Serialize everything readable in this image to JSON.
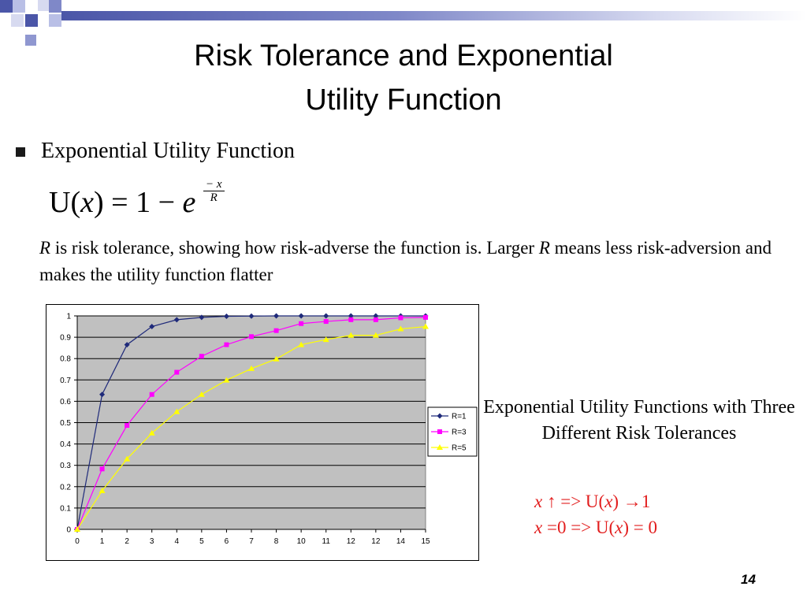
{
  "slide": {
    "title_line1": "Risk Tolerance and Exponential",
    "title_line2": "Utility Function",
    "bullet": "Exponential Utility Function",
    "formula": {
      "lhs": "U(",
      "var": "x",
      "mid": ") = 1 − ",
      "base": "e",
      "exp_num": "− x",
      "exp_den": "R"
    },
    "description": {
      "r1": "R",
      "t1": " is risk tolerance, showing how risk-adverse the function is. Larger ",
      "r2": "R",
      "t2": " means less risk-adversion and makes the utility function flatter"
    },
    "caption": "Exponential Utility Functions with Three Different Risk Tolerances",
    "note1": {
      "x": "x",
      "rest1": " ↑ => U(",
      "x2": "x",
      "rest2": ") →1"
    },
    "note2": {
      "x": "x",
      "rest1": " =0 => U(",
      "x2": "x",
      "rest2": ") = 0"
    },
    "page_number": "14",
    "colors": {
      "note_text": "#e21d1d",
      "plot_bg": "#c0c0c0",
      "top_bar": "#4b56a8"
    }
  },
  "chart_data": {
    "type": "line",
    "categories": [
      "0",
      "1",
      "2",
      "3",
      "4",
      "5",
      "6",
      "7",
      "8",
      "10",
      "11",
      "12",
      "12",
      "14",
      "15"
    ],
    "yticks": [
      "0",
      "0.1",
      "0.2",
      "0.3",
      "0.4",
      "0.5",
      "0.6",
      "0.7",
      "0.8",
      "0.9",
      "1"
    ],
    "ylim": [
      0,
      1
    ],
    "grid": true,
    "legend_position": "right",
    "series": [
      {
        "name": "R=1",
        "color": "#1f2a7a",
        "marker": "diamond",
        "values": [
          0,
          0.632,
          0.865,
          0.95,
          0.982,
          0.993,
          0.998,
          0.999,
          1.0,
          1.0,
          1.0,
          1.0,
          1.0,
          1.0,
          1.0
        ]
      },
      {
        "name": "R=3",
        "color": "#ff00ff",
        "marker": "square",
        "values": [
          0,
          0.283,
          0.487,
          0.632,
          0.736,
          0.811,
          0.865,
          0.903,
          0.931,
          0.964,
          0.974,
          0.982,
          0.982,
          0.991,
          0.993
        ]
      },
      {
        "name": "R=5",
        "color": "#ffff00",
        "marker": "triangle",
        "values": [
          0,
          0.181,
          0.33,
          0.451,
          0.551,
          0.632,
          0.699,
          0.753,
          0.798,
          0.865,
          0.889,
          0.909,
          0.909,
          0.939,
          0.95
        ]
      }
    ]
  }
}
